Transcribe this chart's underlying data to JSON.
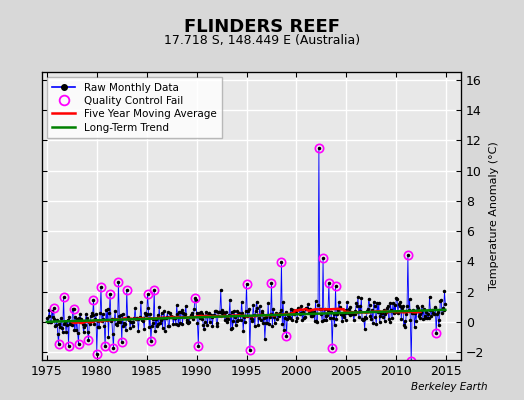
{
  "title": "FLINDERS REEF",
  "subtitle": "17.718 S, 148.449 E (Australia)",
  "ylabel_right": "Temperature Anomaly (°C)",
  "watermark": "Berkeley Earth",
  "xlim": [
    1974.5,
    2016.5
  ],
  "ylim": [
    -2.5,
    16.5
  ],
  "yticks": [
    -2,
    0,
    2,
    4,
    6,
    8,
    10,
    12,
    14,
    16
  ],
  "xticks": [
    1975,
    1980,
    1985,
    1990,
    1995,
    2000,
    2005,
    2010,
    2015
  ],
  "bg_color": "#d8d8d8",
  "plot_bg_color": "#e8e8e8",
  "grid_color": "white",
  "line_color_raw": "blue",
  "marker_color_raw": "black",
  "qc_fail_color": "magenta",
  "moving_avg_color": "red",
  "trend_color": "green",
  "legend_loc": "upper left"
}
